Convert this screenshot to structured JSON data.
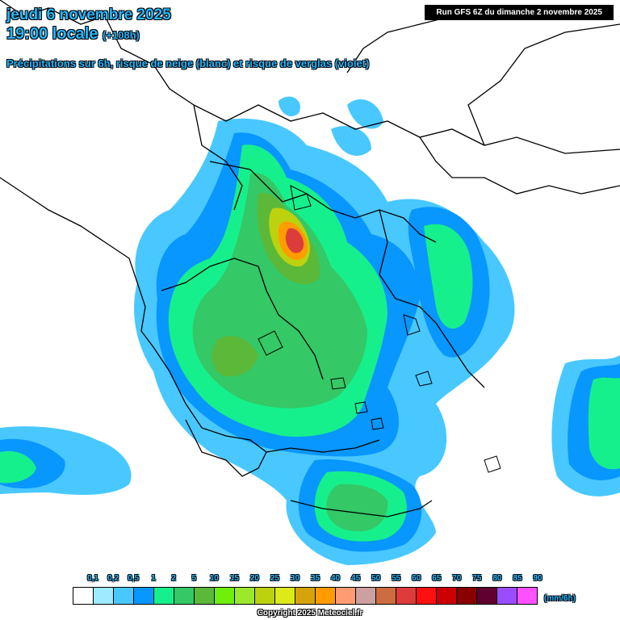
{
  "header": {
    "date": "jeudi 6 novembre 2025",
    "time": "19:00 locale",
    "lead": "(+108h)",
    "subtitle": "Précipitations sur 6h, risque de neige (blanc) et risque de verglas (violet)",
    "run": "Run GFS 6Z du dimanche 2 novembre 2025"
  },
  "legend": {
    "ticks": [
      "0,1",
      "0,2",
      "0,5",
      "1",
      "2",
      "5",
      "10",
      "15",
      "20",
      "25",
      "30",
      "35",
      "40",
      "45",
      "50",
      "55",
      "60",
      "65",
      "70",
      "75",
      "80",
      "85",
      "90"
    ],
    "colors": [
      "#ffffff",
      "#9eeaff",
      "#48c8ff",
      "#0896ff",
      "#16f08c",
      "#34c866",
      "#5cb838",
      "#6ef00a",
      "#9ce82a",
      "#bcd20e",
      "#dcea1a",
      "#d6a40a",
      "#ff9c00",
      "#ff9c74",
      "#cca0a0",
      "#cc6c40",
      "#dc3c3c",
      "#ff1010",
      "#cc0000",
      "#880000",
      "#600030",
      "#9a4cff",
      "#ff50ff"
    ],
    "unit": "(mm/6h)"
  },
  "copyright": "Copyright 2025 Meteociel.fr",
  "map": {
    "region": "Balkans / Greece / Aegean / western Turkey",
    "precip_colors": {
      "light_blue": "#48c8ff",
      "blue": "#0896ff",
      "cyan_green": "#16f08c",
      "green": "#34c866",
      "olive": "#5cb838",
      "yellow_green": "#bcd20e",
      "orange": "#ff9c00",
      "red": "#dc3c3c"
    }
  }
}
